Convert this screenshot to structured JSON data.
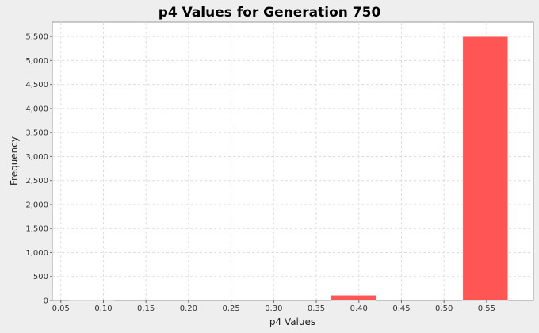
{
  "chart_data": {
    "type": "bar",
    "title": "p4 Values for Generation 750",
    "xlabel": "p4 Values",
    "ylabel": "Frequency",
    "xlim": [
      0.04,
      0.605
    ],
    "ylim": [
      0,
      5800
    ],
    "x_ticks": [
      "0.05",
      "0.10",
      "0.15",
      "0.20",
      "0.25",
      "0.30",
      "0.35",
      "0.40",
      "0.45",
      "0.50",
      "0.55"
    ],
    "x_tick_values": [
      0.05,
      0.1,
      0.15,
      0.2,
      0.25,
      0.3,
      0.35,
      0.4,
      0.45,
      0.5,
      0.55
    ],
    "y_ticks": [
      "0",
      "500",
      "1,000",
      "1,500",
      "2,000",
      "2,500",
      "3,000",
      "3,500",
      "4,000",
      "4,500",
      "5,000",
      "5,500"
    ],
    "y_tick_values": [
      0,
      500,
      1000,
      1500,
      2000,
      2500,
      3000,
      3500,
      4000,
      4500,
      5000,
      5500
    ],
    "grid": true,
    "bar_color": "#ff5555",
    "bins": [
      {
        "x0": 0.06,
        "x1": 0.112,
        "value": 15
      },
      {
        "x0": 0.367,
        "x1": 0.42,
        "value": 110
      },
      {
        "x0": 0.522,
        "x1": 0.575,
        "value": 5500
      }
    ]
  }
}
